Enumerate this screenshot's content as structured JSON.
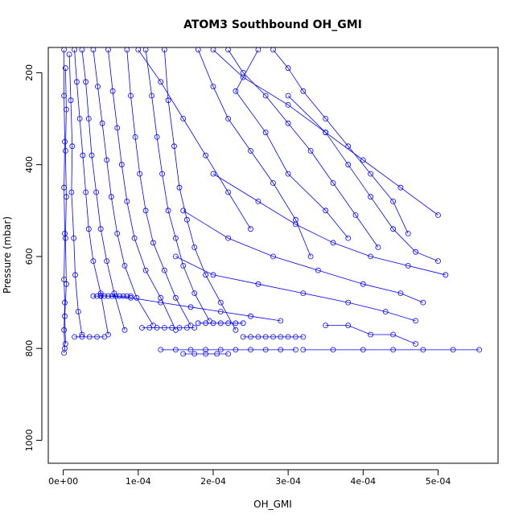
{
  "chart_data": {
    "type": "line",
    "title": "ATOM3 Southbound OH_GMI",
    "xlabel": "OH_GMI",
    "ylabel": "Pressure (mbar)",
    "xlim": [
      -2e-05,
      0.00058
    ],
    "ylim": [
      1050,
      145
    ],
    "y_reversed": true,
    "x_ticks": [
      0,
      0.0001,
      0.0002,
      0.0003,
      0.0004,
      0.0005
    ],
    "x_tick_labels": [
      "0e+00",
      "1e-04",
      "2e-04",
      "3e-04",
      "4e-04",
      "5e-04"
    ],
    "y_ticks": [
      200,
      400,
      600,
      800,
      1000
    ],
    "y_tick_labels": [
      "200",
      "400",
      "600",
      "800",
      "1000"
    ],
    "grid": false,
    "legend": "none",
    "marker": "open-circle",
    "color": "#0000ff",
    "series": [
      {
        "x": [
          1e-06,
          1e-06,
          2e-06,
          1e-06,
          2e-06,
          1e-06,
          2e-06,
          1e-06,
          2e-06,
          1e-06
        ],
        "y": [
          150,
          250,
          350,
          450,
          550,
          650,
          700,
          760,
          800,
          810
        ]
      },
      {
        "x": [
          3e-06,
          4e-06,
          3e-06,
          4e-06,
          3e-06,
          4e-06,
          2e-06,
          3e-06
        ],
        "y": [
          190,
          280,
          370,
          470,
          560,
          660,
          730,
          790
        ]
      },
      {
        "x": [
          8e-06,
          1e-05,
          1.2e-05,
          1.1e-05,
          1.4e-05,
          1.6e-05,
          2e-05,
          2.5e-05
        ],
        "y": [
          160,
          260,
          360,
          460,
          560,
          640,
          720,
          770
        ]
      },
      {
        "x": [
          1.5e-05,
          1.8e-05,
          2.2e-05,
          2.6e-05,
          3e-05,
          3.4e-05,
          4e-05,
          5e-05,
          6e-05
        ],
        "y": [
          150,
          220,
          300,
          380,
          460,
          540,
          610,
          680,
          770
        ]
      },
      {
        "x": [
          2.5e-05,
          3e-05,
          3.4e-05,
          3.8e-05,
          4.4e-05,
          5e-05,
          5.8e-05,
          6.8e-05,
          8.2e-05
        ],
        "y": [
          150,
          220,
          300,
          380,
          460,
          540,
          610,
          680,
          760
        ]
      },
      {
        "x": [
          4e-05,
          4.6e-05,
          5.2e-05,
          5.8e-05,
          6.4e-05,
          7.2e-05,
          8.2e-05,
          9.8e-05,
          0.00012
        ],
        "y": [
          150,
          230,
          310,
          390,
          470,
          550,
          620,
          690,
          750
        ]
      },
      {
        "x": [
          6e-05,
          6.6e-05,
          7.2e-05,
          7.8e-05,
          8.5e-05,
          9.5e-05,
          0.00011,
          0.00013,
          0.00015
        ],
        "y": [
          150,
          240,
          320,
          400,
          480,
          560,
          630,
          690,
          760
        ]
      },
      {
        "x": [
          8.5e-05,
          9e-05,
          9.6e-05,
          0.000102,
          0.00011,
          0.00012,
          0.000135,
          0.00015,
          0.00017
        ],
        "y": [
          150,
          250,
          340,
          420,
          500,
          570,
          630,
          690,
          750
        ]
      },
      {
        "x": [
          0.00011,
          0.000118,
          0.000125,
          0.000132,
          0.00014,
          0.00015,
          0.00016,
          0.000175,
          0.000195
        ],
        "y": [
          150,
          250,
          340,
          420,
          500,
          560,
          620,
          680,
          740
        ]
      },
      {
        "x": [
          0.000135,
          0.00014,
          0.000148,
          0.000155,
          0.000165,
          0.000175,
          0.00019,
          0.00021,
          0.00023
        ],
        "y": [
          150,
          260,
          360,
          450,
          520,
          580,
          640,
          700,
          760
        ]
      },
      {
        "x": [
          0.00018,
          0.0002,
          0.00022,
          0.00025,
          0.00028,
          0.00031,
          0.00033
        ],
        "y": [
          150,
          230,
          300,
          370,
          440,
          520,
          600
        ]
      },
      {
        "x": [
          0.00022,
          0.00024,
          0.00027,
          0.0003,
          0.00033,
          0.00036,
          0.00039,
          0.00042
        ],
        "y": [
          150,
          200,
          250,
          310,
          370,
          440,
          510,
          580
        ]
      },
      {
        "x": [
          0.00028,
          0.0003,
          0.00032,
          0.00035,
          0.00038,
          0.00041,
          0.00044,
          0.00046
        ],
        "y": [
          150,
          190,
          240,
          300,
          360,
          420,
          480,
          550
        ]
      },
      {
        "x": [
          0.0003,
          0.00035,
          0.00038,
          0.00041,
          0.00044,
          0.00047,
          0.0005
        ],
        "y": [
          250,
          330,
          400,
          470,
          540,
          590,
          610
        ]
      },
      {
        "x": [
          0.0002,
          0.00026,
          0.00031,
          0.00036,
          0.00041,
          0.00046,
          0.00051
        ],
        "y": [
          420,
          480,
          530,
          570,
          600,
          620,
          640
        ]
      },
      {
        "x": [
          0.00016,
          0.00022,
          0.00028,
          0.00034,
          0.0004,
          0.00045,
          0.00048
        ],
        "y": [
          500,
          560,
          600,
          630,
          660,
          680,
          700
        ]
      },
      {
        "x": [
          0.00015,
          0.0002,
          0.00026,
          0.00032,
          0.00038,
          0.00043,
          0.00047
        ],
        "y": [
          600,
          640,
          660,
          680,
          700,
          720,
          740
        ]
      },
      {
        "x": [
          5e-05,
          9e-05,
          0.00013,
          0.00017,
          0.00021,
          0.00025,
          0.00029
        ],
        "y": [
          685,
          690,
          700,
          710,
          720,
          730,
          740
        ]
      },
      {
        "x": [
          4e-05,
          4.5e-05,
          5e-05,
          5.5e-05,
          6e-05,
          6.5e-05,
          7e-05,
          7.5e-05,
          8e-05,
          8.5e-05,
          9e-05
        ],
        "y": [
          686,
          686,
          686,
          686,
          686,
          686,
          686,
          686,
          686,
          686,
          686
        ]
      },
      {
        "x": [
          0.000105,
          0.000115,
          0.000125,
          0.000135,
          0.000145,
          0.000155,
          0.000165,
          0.000175
        ],
        "y": [
          755,
          755,
          755,
          755,
          755,
          755,
          755,
          755
        ]
      },
      {
        "x": [
          0.00018,
          0.00019,
          0.0002,
          0.00021,
          0.00022,
          0.00023,
          0.00024
        ],
        "y": [
          745,
          745,
          745,
          745,
          745,
          745,
          745
        ]
      },
      {
        "x": [
          0.00024,
          0.00025,
          0.00026,
          0.00027,
          0.00028,
          0.00029,
          0.0003,
          0.00031,
          0.00032
        ],
        "y": [
          775,
          775,
          775,
          775,
          775,
          775,
          775,
          775,
          775
        ]
      },
      {
        "x": [
          0.00013,
          0.00015,
          0.00017,
          0.00019,
          0.00021,
          0.00023,
          0.00025,
          0.00027,
          0.00029,
          0.00031
        ],
        "y": [
          803,
          803,
          803,
          803,
          803,
          803,
          803,
          803,
          803,
          803
        ]
      },
      {
        "x": [
          0.00032,
          0.00036,
          0.0004,
          0.00044,
          0.00048,
          0.00052,
          0.000555
        ],
        "y": [
          803,
          803,
          803,
          803,
          803,
          803,
          803
        ]
      },
      {
        "x": [
          0.00016,
          0.000175,
          0.00019,
          0.000205,
          0.00022
        ],
        "y": [
          812,
          812,
          812,
          812,
          812
        ]
      },
      {
        "x": [
          0.00035,
          0.00038,
          0.00041,
          0.00044,
          0.00047
        ],
        "y": [
          750,
          750,
          770,
          770,
          790
        ]
      },
      {
        "x": [
          1.5e-05,
          2.5e-05,
          3.5e-05,
          4.5e-05,
          5.5e-05
        ],
        "y": [
          775,
          775,
          775,
          775,
          775
        ]
      },
      {
        "x": [
          0.0002,
          0.00024,
          0.0003,
          0.00035,
          0.0004,
          0.00045,
          0.0005
        ],
        "y": [
          150,
          210,
          270,
          330,
          390,
          450,
          510
        ]
      },
      {
        "x": [
          0.0001,
          0.00013,
          0.00016,
          0.00019,
          0.00022,
          0.00025
        ],
        "y": [
          150,
          220,
          300,
          380,
          460,
          540
        ]
      },
      {
        "x": [
          0.00026,
          0.00023,
          0.00027,
          0.0003,
          0.00035,
          0.00038
        ],
        "y": [
          150,
          240,
          330,
          420,
          500,
          560
        ]
      }
    ]
  }
}
